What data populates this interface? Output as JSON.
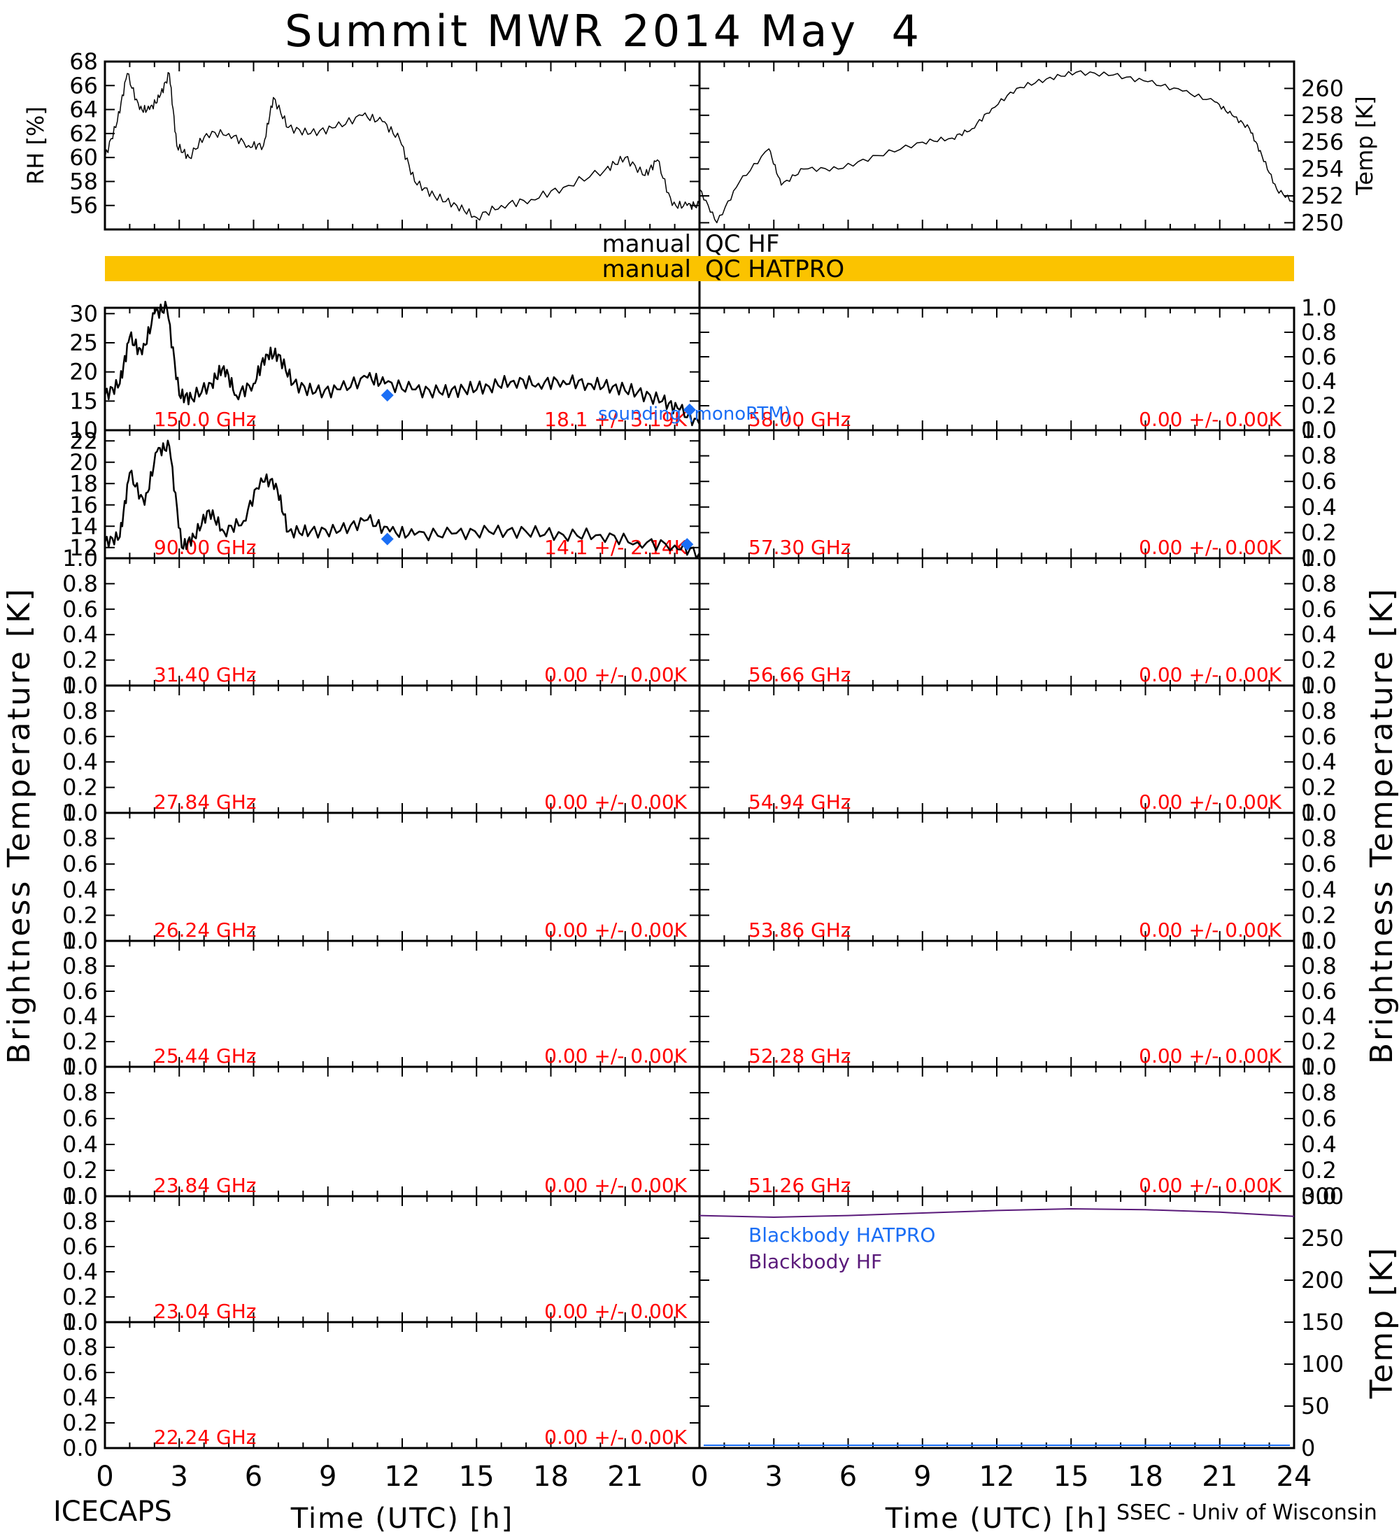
{
  "title": "Summit MWR 2014 May  4",
  "footer_left": "ICECAPS",
  "footer_right": "SSEC - Univ of Wisconsin",
  "colors": {
    "axis": "#000000",
    "channel_label": "#ff0000",
    "sounding": "#1a6ef5",
    "qc_bar": "#fbc300",
    "blackbody_hatpro": "#1a6ef5",
    "blackbody_hf": "#5a1a7a"
  },
  "chart_data": [
    {
      "id": "rh",
      "type": "line",
      "ylabel": "RH [%]",
      "xlim": [
        0,
        24
      ],
      "ylim": [
        54,
        68
      ],
      "yticks": [
        "56",
        "58",
        "60",
        "62",
        "64",
        "66",
        "68"
      ],
      "series": [
        {
          "values": [
            [
              0,
              60
            ],
            [
              0.5,
              63
            ],
            [
              0.9,
              67
            ],
            [
              1.4,
              64
            ],
            [
              1.8,
              64
            ],
            [
              2.2,
              65
            ],
            [
              2.6,
              67
            ],
            [
              2.9,
              61
            ],
            [
              3.4,
              60
            ],
            [
              4.1,
              62
            ],
            [
              5.0,
              62
            ],
            [
              5.8,
              61
            ],
            [
              6.4,
              61
            ],
            [
              6.8,
              65
            ],
            [
              7.4,
              62.5
            ],
            [
              8.3,
              62
            ],
            [
              9.3,
              62.5
            ],
            [
              10.4,
              63.5
            ],
            [
              11.2,
              63
            ],
            [
              11.9,
              61.5
            ],
            [
              12.5,
              58
            ],
            [
              13.3,
              56.8
            ],
            [
              14.2,
              56
            ],
            [
              15.0,
              55
            ],
            [
              16.0,
              56
            ],
            [
              17.2,
              56.5
            ],
            [
              18.5,
              57.5
            ],
            [
              20.2,
              59
            ],
            [
              21.0,
              60
            ],
            [
              21.8,
              58.5
            ],
            [
              22.3,
              59.8
            ],
            [
              22.9,
              56
            ],
            [
              23.5,
              56
            ],
            [
              24.0,
              56
            ]
          ]
        }
      ]
    },
    {
      "id": "temp",
      "type": "line",
      "ylabel": "Temp [K]",
      "xlim": [
        0,
        24
      ],
      "ylim": [
        249.5,
        262
      ],
      "yticks": [
        "250",
        "252",
        "254",
        "256",
        "258",
        "260"
      ],
      "series": [
        {
          "values": [
            [
              0,
              252.5
            ],
            [
              0.7,
              250
            ],
            [
              1.6,
              253
            ],
            [
              2.8,
              255.5
            ],
            [
              3.3,
              252.8
            ],
            [
              4.2,
              254
            ],
            [
              5.6,
              254
            ],
            [
              7.2,
              255
            ],
            [
              9.0,
              256
            ],
            [
              10.2,
              256.3
            ],
            [
              11.0,
              257
            ],
            [
              11.8,
              258.5
            ],
            [
              12.8,
              260
            ],
            [
              14.0,
              260.7
            ],
            [
              15.2,
              261.2
            ],
            [
              16.7,
              261
            ],
            [
              18.1,
              260.5
            ],
            [
              19.5,
              259.8
            ],
            [
              20.8,
              259
            ],
            [
              21.5,
              258
            ],
            [
              22.2,
              257
            ],
            [
              22.7,
              255
            ],
            [
              23.3,
              252.5
            ],
            [
              24.0,
              251.5
            ]
          ]
        }
      ]
    },
    {
      "id": "qc",
      "type": "table",
      "flags": [
        {
          "label": "manual  QC HF",
          "flagged": false
        },
        {
          "label": "manual  QC HATPRO",
          "flagged": true
        }
      ]
    },
    {
      "id": "tb-150",
      "type": "line",
      "ylabel": "Brightness Temperature [K]",
      "xlim": [
        0,
        24
      ],
      "ylim": [
        10,
        31
      ],
      "yticks": [
        "10",
        "15",
        "20",
        "25",
        "30"
      ],
      "channel": "150.0 GHz",
      "stats": "18.1 +/-  3.19K",
      "series": [
        {
          "values": [
            [
              0,
              16
            ],
            [
              0.6,
              18
            ],
            [
              1.0,
              26
            ],
            [
              1.5,
              23
            ],
            [
              2.0,
              30
            ],
            [
              2.5,
              31
            ],
            [
              3.0,
              16
            ],
            [
              3.5,
              15.5
            ],
            [
              4.3,
              18
            ],
            [
              4.8,
              21
            ],
            [
              5.3,
              16
            ],
            [
              6.0,
              18
            ],
            [
              6.5,
              23
            ],
            [
              7.0,
              23
            ],
            [
              7.6,
              18
            ],
            [
              8.5,
              16.5
            ],
            [
              9.5,
              17
            ],
            [
              10.6,
              19
            ],
            [
              11.3,
              18
            ],
            [
              12.4,
              17
            ],
            [
              13.5,
              16.5
            ],
            [
              14.5,
              17
            ],
            [
              15.5,
              17.5
            ],
            [
              16.5,
              18.5
            ],
            [
              17.5,
              18
            ],
            [
              18.5,
              18.5
            ],
            [
              19.5,
              18
            ],
            [
              20.5,
              17.5
            ],
            [
              21.5,
              16.5
            ],
            [
              22.5,
              15
            ],
            [
              23.2,
              13.5
            ],
            [
              24,
              11
            ]
          ]
        },
        {
          "name": "sounding (monoRTM)",
          "values": [
            [
              11.4,
              16
            ],
            [
              23.6,
              13.5
            ]
          ]
        }
      ]
    },
    {
      "id": "tb-90",
      "type": "line",
      "xlim": [
        0,
        24
      ],
      "ylim": [
        11,
        23
      ],
      "yticks": [
        "12",
        "14",
        "16",
        "18",
        "20",
        "22"
      ],
      "channel": "90.00 GHz",
      "stats": "14.1 +/-  2.14K",
      "series": [
        {
          "values": [
            [
              0,
              12.5
            ],
            [
              0.6,
              13
            ],
            [
              1.0,
              19
            ],
            [
              1.6,
              16
            ],
            [
              2.1,
              21
            ],
            [
              2.6,
              21.5
            ],
            [
              3.1,
              12
            ],
            [
              3.6,
              13
            ],
            [
              4.2,
              15.5
            ],
            [
              4.8,
              13.5
            ],
            [
              5.6,
              14.5
            ],
            [
              6.3,
              18.5
            ],
            [
              6.9,
              18
            ],
            [
              7.4,
              13.5
            ],
            [
              8.3,
              13.5
            ],
            [
              9.5,
              13.6
            ],
            [
              10.6,
              14.6
            ],
            [
              11.5,
              13.5
            ],
            [
              12.5,
              13.2
            ],
            [
              14,
              13.3
            ],
            [
              15.5,
              13.5
            ],
            [
              17,
              13.5
            ],
            [
              18.5,
              13.2
            ],
            [
              20,
              13.2
            ],
            [
              21.5,
              12.5
            ],
            [
              23,
              12.2
            ],
            [
              24,
              11.5
            ]
          ]
        },
        {
          "name": "sounding (monoRTM)",
          "values": [
            [
              11.4,
              12.8
            ],
            [
              23.5,
              12.3
            ]
          ]
        }
      ]
    },
    {
      "id": "tb-31",
      "type": "line",
      "ylim": [
        0,
        1
      ],
      "channel": "31.40 GHz",
      "stats": "0.00 +/-  0.00K"
    },
    {
      "id": "tb-27",
      "type": "line",
      "ylim": [
        0,
        1
      ],
      "channel": "27.84 GHz",
      "stats": "0.00 +/-  0.00K"
    },
    {
      "id": "tb-26",
      "type": "line",
      "ylim": [
        0,
        1
      ],
      "channel": "26.24 GHz",
      "stats": "0.00 +/-  0.00K"
    },
    {
      "id": "tb-25",
      "type": "line",
      "ylim": [
        0,
        1
      ],
      "channel": "25.44 GHz",
      "stats": "0.00 +/-  0.00K"
    },
    {
      "id": "tb-23-84",
      "type": "line",
      "ylim": [
        0,
        1
      ],
      "channel": "23.84 GHz",
      "stats": "0.00 +/-  0.00K"
    },
    {
      "id": "tb-23-04",
      "type": "line",
      "ylim": [
        0,
        1
      ],
      "channel": "23.04 GHz",
      "stats": "0.00 +/-  0.00K"
    },
    {
      "id": "tb-22",
      "type": "line",
      "ylim": [
        0,
        1
      ],
      "channel": "22.24 GHz",
      "stats": "0.00 +/-  0.00K"
    },
    {
      "id": "tb-58",
      "type": "line",
      "ylim": [
        0,
        1
      ],
      "channel": "58.00 GHz",
      "stats": "0.00 +/-  0.00K"
    },
    {
      "id": "tb-57",
      "type": "line",
      "ylim": [
        0,
        1
      ],
      "channel": "57.30 GHz",
      "stats": "0.00 +/-  0.00K"
    },
    {
      "id": "tb-56",
      "type": "line",
      "ylim": [
        0,
        1
      ],
      "channel": "56.66 GHz",
      "stats": "0.00 +/-  0.00K"
    },
    {
      "id": "tb-54",
      "type": "line",
      "ylim": [
        0,
        1
      ],
      "channel": "54.94 GHz",
      "stats": "0.00 +/-  0.00K"
    },
    {
      "id": "tb-53",
      "type": "line",
      "ylim": [
        0,
        1
      ],
      "channel": "53.86 GHz",
      "stats": "0.00 +/-  0.00K"
    },
    {
      "id": "tb-52",
      "type": "line",
      "ylim": [
        0,
        1
      ],
      "channel": "52.28 GHz",
      "stats": "0.00 +/-  0.00K"
    },
    {
      "id": "tb-51",
      "type": "line",
      "ylim": [
        0,
        1
      ],
      "channel": "51.26 GHz",
      "stats": "0.00 +/-  0.00K"
    },
    {
      "id": "blackbody",
      "type": "line",
      "ylabel": "Temp [K]",
      "xlabel": "Time (UTC) [h]",
      "xlim": [
        0,
        24
      ],
      "ylim": [
        0,
        300
      ],
      "yticks": [
        "0",
        "50",
        "100",
        "150",
        "200",
        "250",
        "300"
      ],
      "xticks": [
        "0",
        "3",
        "6",
        "9",
        "12",
        "15",
        "18",
        "21",
        "24"
      ],
      "series": [
        {
          "name": "Blackbody HATPRO",
          "values": []
        },
        {
          "name": "Blackbody HF",
          "values": [
            [
              0,
              277
            ],
            [
              3,
              275
            ],
            [
              6,
              277
            ],
            [
              9,
              280
            ],
            [
              12,
              283
            ],
            [
              15,
              285
            ],
            [
              18,
              284
            ],
            [
              21,
              281
            ],
            [
              24,
              276
            ]
          ]
        }
      ]
    },
    {
      "id": "left-time-axis",
      "xlabel": "Time (UTC) [h]",
      "xticks": [
        "0",
        "3",
        "6",
        "9",
        "12",
        "15",
        "18",
        "21"
      ]
    },
    {
      "id": "small-ticks",
      "yticks": [
        "0.0",
        "0.2",
        "0.4",
        "0.6",
        "0.8",
        "1.0"
      ]
    }
  ]
}
